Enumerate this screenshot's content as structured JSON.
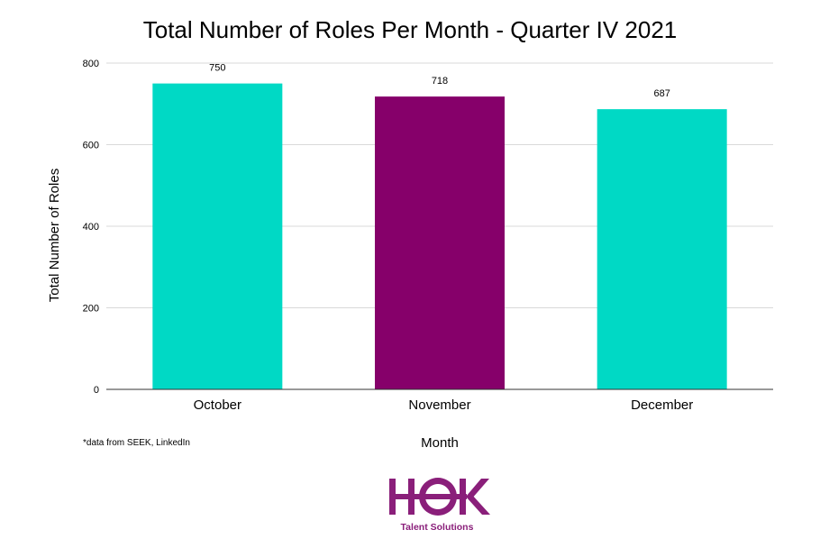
{
  "chart_data": {
    "type": "bar",
    "title": "Total Number of Roles Per Month - Quarter IV 2021",
    "xlabel": "Month",
    "ylabel": "Total Number of Roles",
    "categories": [
      "October",
      "November",
      "December"
    ],
    "values": [
      750,
      718,
      687
    ],
    "data_labels": [
      "750",
      "718",
      "687"
    ],
    "bar_colors": [
      "#00d9c5",
      "#86006a",
      "#00d9c5"
    ],
    "ylim": [
      0,
      800
    ],
    "yticks": [
      0,
      200,
      400,
      600,
      800
    ],
    "grid": true,
    "legend": "none"
  },
  "footnote": "*data from SEEK, LinkedIn",
  "logo": {
    "wordmark": "HOK",
    "tagline": "Talent Solutions",
    "color": "#8a1f7a"
  }
}
